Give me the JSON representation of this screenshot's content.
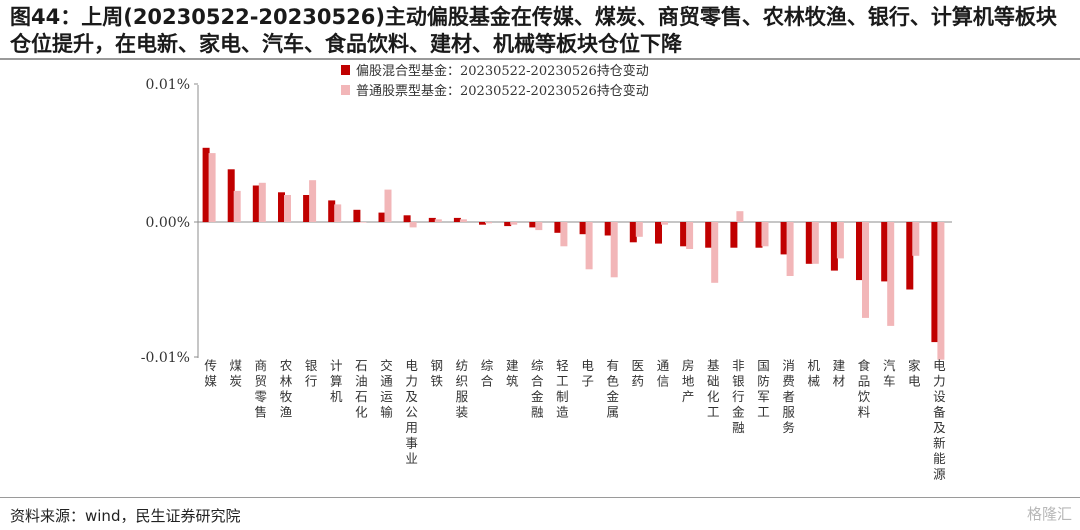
{
  "title": "图44：上周(20230522-20230526)主动偏股基金在传媒、煤炭、商贸零售、农林牧渔、银行、计算机等板块仓位提升，在电新、家电、汽车、食品饮料、建材、机械等板块仓位下降",
  "source": "资料来源：wind，民生证券研究院",
  "watermark": "格隆汇",
  "colors": {
    "series1": "#c00000",
    "series2": "#f2b6b8",
    "axis": "#8c8c8c"
  },
  "chart_data": {
    "type": "bar",
    "categories": [
      "传媒",
      "煤炭",
      "商贸零售",
      "农林牧渔",
      "银行",
      "计算机",
      "石油石化",
      "交通运输",
      "电力及公用事业",
      "钢铁",
      "纺织服装",
      "综合",
      "建筑",
      "综合金融",
      "轻工制造",
      "电子",
      "有色金属",
      "医药",
      "通信",
      "房地产",
      "基础化工",
      "非银行金融",
      "国防军工",
      "消费者服务",
      "机械",
      "建材",
      "食品饮料",
      "汽车",
      "家电",
      "电力设备及新能源"
    ],
    "series": [
      {
        "name": "偏股混合型基金：20230522-20230526持仓变动",
        "values": [
          0.0055,
          0.0039,
          0.0027,
          0.0022,
          0.002,
          0.0016,
          0.0009,
          0.0007,
          0.0005,
          0.0003,
          0.0003,
          -0.0002,
          -0.0003,
          -0.0004,
          -0.0008,
          -0.0009,
          -0.001,
          -0.0015,
          -0.0016,
          -0.0018,
          -0.0019,
          -0.0019,
          -0.0019,
          -0.0024,
          -0.0031,
          -0.0036,
          -0.0043,
          -0.0044,
          -0.005,
          -0.0089
        ]
      },
      {
        "name": "普通股票型基金：20230522-20230526持仓变动",
        "values": [
          0.0051,
          0.0023,
          0.0029,
          0.002,
          0.0031,
          0.0013,
          0.0,
          0.0024,
          -0.0004,
          0.0002,
          0.0002,
          -0.0001,
          -0.0002,
          -0.0006,
          -0.0018,
          -0.0035,
          -0.0041,
          -0.0011,
          -0.0002,
          -0.002,
          -0.0045,
          0.0008,
          -0.0018,
          -0.004,
          -0.0031,
          -0.0027,
          -0.0071,
          -0.0077,
          -0.0025,
          -0.0102
        ]
      }
    ],
    "yticks": [
      {
        "value": 0.0001,
        "label": "0.01%"
      },
      {
        "value": 0.0,
        "label": "0.00%"
      },
      {
        "value": -0.0001,
        "label": "-0.01%"
      }
    ],
    "ylim": [
      -0.0105,
      0.01
    ],
    "legend_position": "top-center",
    "grid": false
  }
}
